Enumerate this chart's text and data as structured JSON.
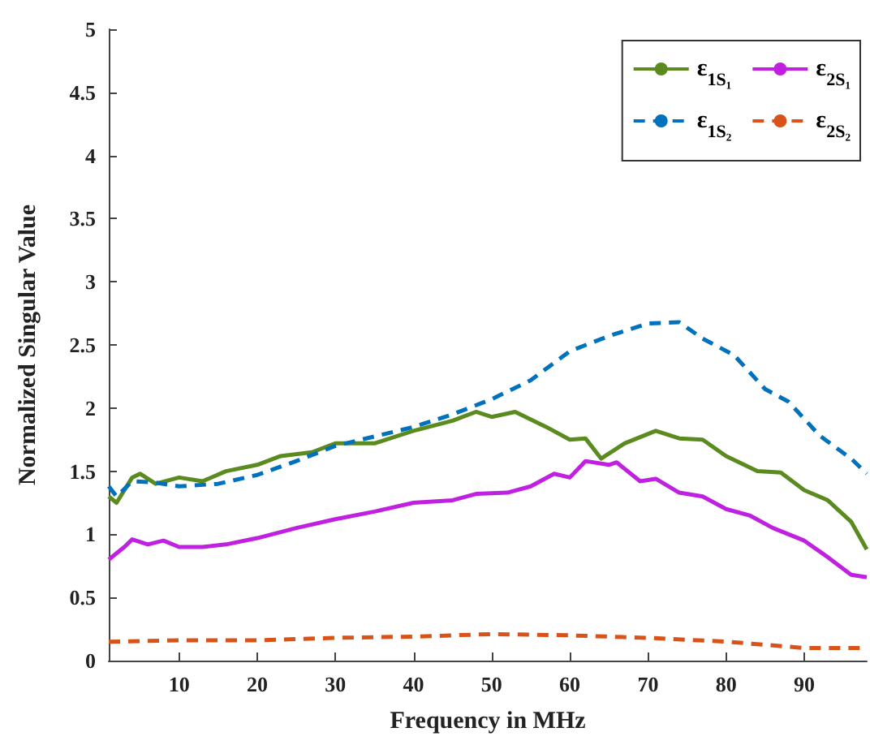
{
  "chart_data": {
    "type": "line",
    "xlabel": "Frequency in MHz",
    "ylabel": "Normalized Singular Value",
    "xlim": [
      1,
      98
    ],
    "xticks": [
      10,
      20,
      30,
      40,
      50,
      60,
      70,
      80,
      90
    ],
    "ylim": [
      0,
      5
    ],
    "yticks": [
      0,
      0.5,
      1,
      1.5,
      2,
      2.5,
      3,
      3.5,
      4,
      4.5,
      5
    ],
    "grid": false,
    "legend": "top right",
    "marker": "none",
    "series": [
      {
        "name": "ε$_{1S₁}$",
        "color": "#5b8a1f",
        "line_style": "solid",
        "x": [
          1,
          2,
          4,
          5,
          7,
          10,
          13,
          16,
          20,
          23,
          27,
          30,
          35,
          40,
          45,
          48,
          50,
          53,
          57,
          60,
          62,
          64,
          67,
          71,
          74,
          77,
          80,
          84,
          87,
          90,
          93,
          96,
          98
        ],
        "values": [
          1.3,
          1.25,
          1.45,
          1.48,
          1.4,
          1.45,
          1.42,
          1.5,
          1.55,
          1.62,
          1.65,
          1.72,
          1.72,
          1.82,
          1.9,
          1.97,
          1.93,
          1.97,
          1.85,
          1.75,
          1.76,
          1.6,
          1.72,
          1.82,
          1.76,
          1.75,
          1.62,
          1.5,
          1.49,
          1.35,
          1.27,
          1.1,
          0.88
        ]
      },
      {
        "name": "ε$_{2S₁}$",
        "color": "#c020e0",
        "line_style": "solid",
        "x": [
          1,
          3,
          4,
          6,
          8,
          10,
          13,
          16,
          20,
          25,
          30,
          35,
          40,
          45,
          48,
          52,
          55,
          58,
          60,
          62,
          65,
          66,
          69,
          71,
          74,
          77,
          80,
          83,
          86,
          90,
          93,
          96,
          98
        ],
        "values": [
          0.8,
          0.9,
          0.96,
          0.92,
          0.95,
          0.9,
          0.9,
          0.92,
          0.97,
          1.05,
          1.12,
          1.18,
          1.25,
          1.27,
          1.32,
          1.33,
          1.38,
          1.48,
          1.45,
          1.58,
          1.55,
          1.57,
          1.42,
          1.44,
          1.33,
          1.3,
          1.2,
          1.15,
          1.05,
          0.95,
          0.82,
          0.68,
          0.66
        ]
      },
      {
        "name": "ε$_{1S₂}$",
        "color": "#0072bd",
        "line_style": "dashed",
        "x": [
          1,
          2,
          4,
          7,
          10,
          15,
          20,
          25,
          30,
          40,
          45,
          50,
          55,
          60,
          65,
          70,
          74,
          77,
          81,
          85,
          88,
          92,
          96,
          98
        ],
        "values": [
          1.38,
          1.3,
          1.42,
          1.41,
          1.38,
          1.4,
          1.47,
          1.58,
          1.7,
          1.85,
          1.95,
          2.07,
          2.22,
          2.45,
          2.57,
          2.67,
          2.68,
          2.55,
          2.42,
          2.15,
          2.05,
          1.78,
          1.6,
          1.48
        ]
      },
      {
        "name": "ε$_{2S₂}$",
        "color": "#d95319",
        "line_style": "dashed",
        "x": [
          1,
          10,
          20,
          30,
          40,
          50,
          60,
          70,
          80,
          90,
          98
        ],
        "values": [
          0.15,
          0.16,
          0.16,
          0.18,
          0.19,
          0.21,
          0.2,
          0.18,
          0.15,
          0.1,
          0.1
        ]
      }
    ]
  }
}
